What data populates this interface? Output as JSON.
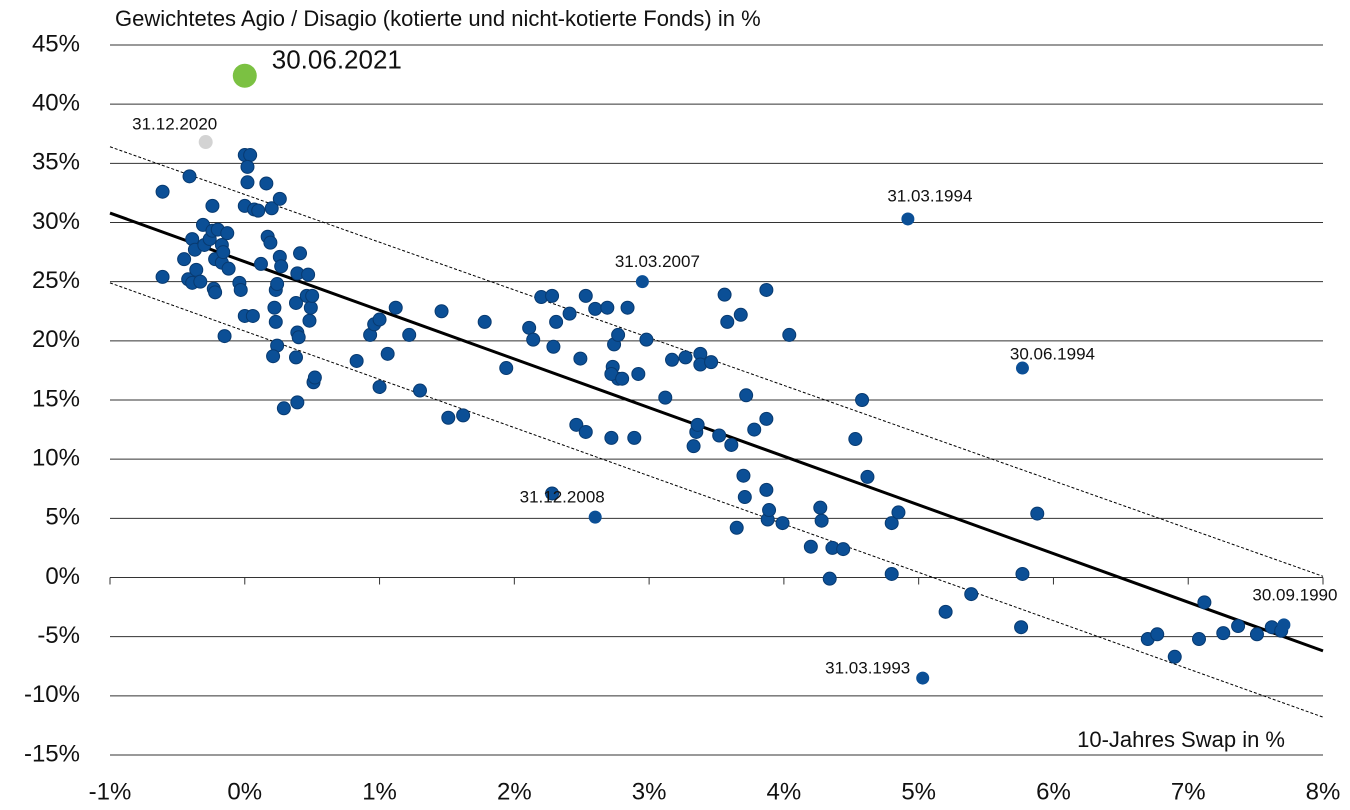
{
  "chart_data": {
    "type": "scatter",
    "title": "Gewichtetes Agio / Disagio (kotierte und nicht-kotierte Fonds) in %",
    "x_label": "10-Jahres Swap in %",
    "xlim": [
      -1,
      8
    ],
    "ylim": [
      -15,
      45
    ],
    "xticks": [
      {
        "value": -1,
        "label": "-1%"
      },
      {
        "value": 0,
        "label": "0%"
      },
      {
        "value": 1,
        "label": "1%"
      },
      {
        "value": 2,
        "label": "2%"
      },
      {
        "value": 3,
        "label": "3%"
      },
      {
        "value": 4,
        "label": "4%"
      },
      {
        "value": 5,
        "label": "5%"
      },
      {
        "value": 6,
        "label": "6%"
      },
      {
        "value": 7,
        "label": "7%"
      },
      {
        "value": 8,
        "label": "8%"
      }
    ],
    "yticks": [
      {
        "value": -15,
        "label": "-15%"
      },
      {
        "value": -10,
        "label": "-10%"
      },
      {
        "value": -5,
        "label": "-5%"
      },
      {
        "value": 0,
        "label": "0%"
      },
      {
        "value": 5,
        "label": "5%"
      },
      {
        "value": 10,
        "label": "10%"
      },
      {
        "value": 15,
        "label": "15%"
      },
      {
        "value": 20,
        "label": "20%"
      },
      {
        "value": 25,
        "label": "25%"
      },
      {
        "value": 30,
        "label": "30%"
      },
      {
        "value": 35,
        "label": "35%"
      },
      {
        "value": 40,
        "label": "40%"
      },
      {
        "value": 45,
        "label": "45%"
      }
    ],
    "grid": true,
    "color": "#0b4f96",
    "x": [
      -0.61,
      -0.61,
      -0.41,
      -0.45,
      -0.42,
      -0.39,
      -0.36,
      -0.39,
      -0.33,
      -0.37,
      -0.31,
      -0.3,
      -0.26,
      -0.24,
      -0.24,
      -0.22,
      -0.23,
      -0.22,
      -0.2,
      -0.17,
      -0.17,
      -0.16,
      -0.13,
      -0.12,
      -0.15,
      -0.04,
      -0.03,
      0.0,
      0.04,
      0.02,
      0.02,
      0.0,
      0.07,
      0.1,
      0.0,
      0.06,
      0.12,
      0.16,
      0.17,
      0.19,
      0.2,
      0.22,
      0.26,
      0.23,
      0.24,
      0.26,
      0.27,
      0.23,
      0.24,
      0.21,
      0.29,
      0.39,
      0.38,
      0.38,
      0.39,
      0.39,
      0.4,
      0.41,
      0.46,
      0.47,
      0.48,
      0.49,
      0.5,
      0.51,
      0.52,
      0.83,
      0.93,
      0.96,
      1.0,
      1.0,
      1.06,
      1.12,
      1.22,
      1.3,
      1.46,
      1.51,
      1.62,
      1.78,
      1.94,
      2.11,
      2.14,
      2.2,
      2.28,
      2.31,
      2.29,
      2.41,
      2.46,
      2.49,
      2.53,
      2.53,
      2.6,
      2.69,
      2.72,
      2.73,
      2.77,
      2.72,
      2.74,
      2.77,
      2.8,
      2.84,
      2.89,
      2.92,
      2.98,
      3.12,
      3.17,
      3.27,
      3.33,
      3.35,
      3.36,
      3.38,
      3.38,
      3.46,
      3.52,
      3.56,
      3.58,
      3.61,
      3.65,
      3.68,
      3.7,
      3.71,
      3.72,
      3.78,
      3.87,
      3.87,
      3.87,
      3.88,
      3.89,
      3.99,
      4.04,
      4.2,
      4.27,
      4.28,
      4.36,
      4.44,
      4.34,
      4.53,
      4.58,
      4.62,
      4.8,
      4.8,
      4.85,
      5.2,
      5.39,
      5.77,
      5.76,
      5.88,
      6.7,
      6.77,
      7.08,
      7.12,
      7.26,
      7.37,
      7.51,
      7.62,
      7.69,
      6.9,
      2.28
    ],
    "y": [
      32.6,
      25.4,
      33.9,
      26.9,
      25.2,
      28.6,
      26.0,
      24.9,
      25.0,
      27.7,
      29.8,
      28.1,
      28.6,
      31.4,
      29.3,
      26.9,
      24.4,
      24.1,
      29.4,
      28.1,
      26.6,
      27.5,
      29.1,
      26.1,
      20.4,
      24.9,
      24.3,
      35.7,
      35.7,
      34.7,
      33.4,
      31.4,
      31.1,
      31.0,
      22.1,
      22.1,
      26.5,
      33.3,
      28.8,
      28.3,
      31.2,
      22.8,
      32.0,
      24.3,
      24.8,
      27.1,
      26.3,
      21.6,
      19.6,
      18.7,
      14.3,
      14.8,
      18.6,
      23.2,
      25.7,
      20.7,
      20.3,
      27.4,
      23.8,
      25.6,
      21.7,
      22.8,
      23.8,
      16.5,
      16.9,
      18.3,
      20.5,
      21.4,
      21.8,
      16.1,
      18.9,
      22.8,
      20.5,
      15.8,
      22.5,
      13.5,
      13.7,
      21.6,
      17.7,
      21.1,
      20.1,
      23.7,
      23.8,
      21.6,
      19.5,
      22.3,
      12.9,
      18.5,
      12.3,
      23.8,
      22.7,
      22.8,
      11.8,
      17.8,
      16.8,
      17.2,
      19.7,
      20.5,
      16.8,
      22.8,
      11.8,
      17.2,
      20.1,
      15.2,
      18.4,
      18.6,
      11.1,
      12.3,
      12.9,
      18.9,
      18.0,
      18.2,
      12.0,
      23.9,
      21.6,
      11.2,
      4.2,
      22.2,
      8.6,
      6.8,
      15.4,
      12.5,
      24.3,
      13.4,
      7.4,
      4.9,
      5.7,
      4.6,
      20.5,
      2.6,
      5.9,
      4.8,
      2.5,
      2.4,
      -0.1,
      11.7,
      15.0,
      8.5,
      0.3,
      4.6,
      5.5,
      -2.9,
      -1.4,
      0.3,
      -4.2,
      5.4,
      -5.2,
      -4.8,
      -5.2,
      -2.1,
      -4.7,
      -4.1,
      -4.8,
      -4.2,
      -4.5,
      -6.7,
      7.1
    ],
    "labeled_points": [
      {
        "label": "30.06.2021",
        "x": 0.0,
        "y": 42.4,
        "color": "#7bc142"
      },
      {
        "label": "31.12.2020",
        "x": -0.29,
        "y": 36.8,
        "color": "#d3d3d3"
      },
      {
        "label": "31.03.1994",
        "x": 4.92,
        "y": 30.3,
        "color": "#0b4f96"
      },
      {
        "label": "31.03.2007",
        "x": 2.95,
        "y": 25.0,
        "color": "#0b4f96"
      },
      {
        "label": "30.06.1994",
        "x": 5.77,
        "y": 17.7,
        "color": "#0b4f96"
      },
      {
        "label": "31.12.2008",
        "x": 2.6,
        "y": 5.1,
        "color": "#0b4f96"
      },
      {
        "label": "31.03.1993",
        "x": 5.03,
        "y": -8.5,
        "color": "#0b4f96"
      },
      {
        "label": "30.09.1990",
        "x": 7.71,
        "y": -4.0,
        "color": "#0b4f96"
      }
    ],
    "lines": [
      {
        "style": "solid",
        "x": [
          -1,
          8
        ],
        "y": [
          30.8,
          -6.2
        ]
      },
      {
        "style": "dotted",
        "x": [
          -1,
          8
        ],
        "y": [
          36.4,
          0.1
        ]
      },
      {
        "style": "dotted",
        "x": [
          -1,
          8
        ],
        "y": [
          24.9,
          -11.8
        ]
      }
    ]
  }
}
